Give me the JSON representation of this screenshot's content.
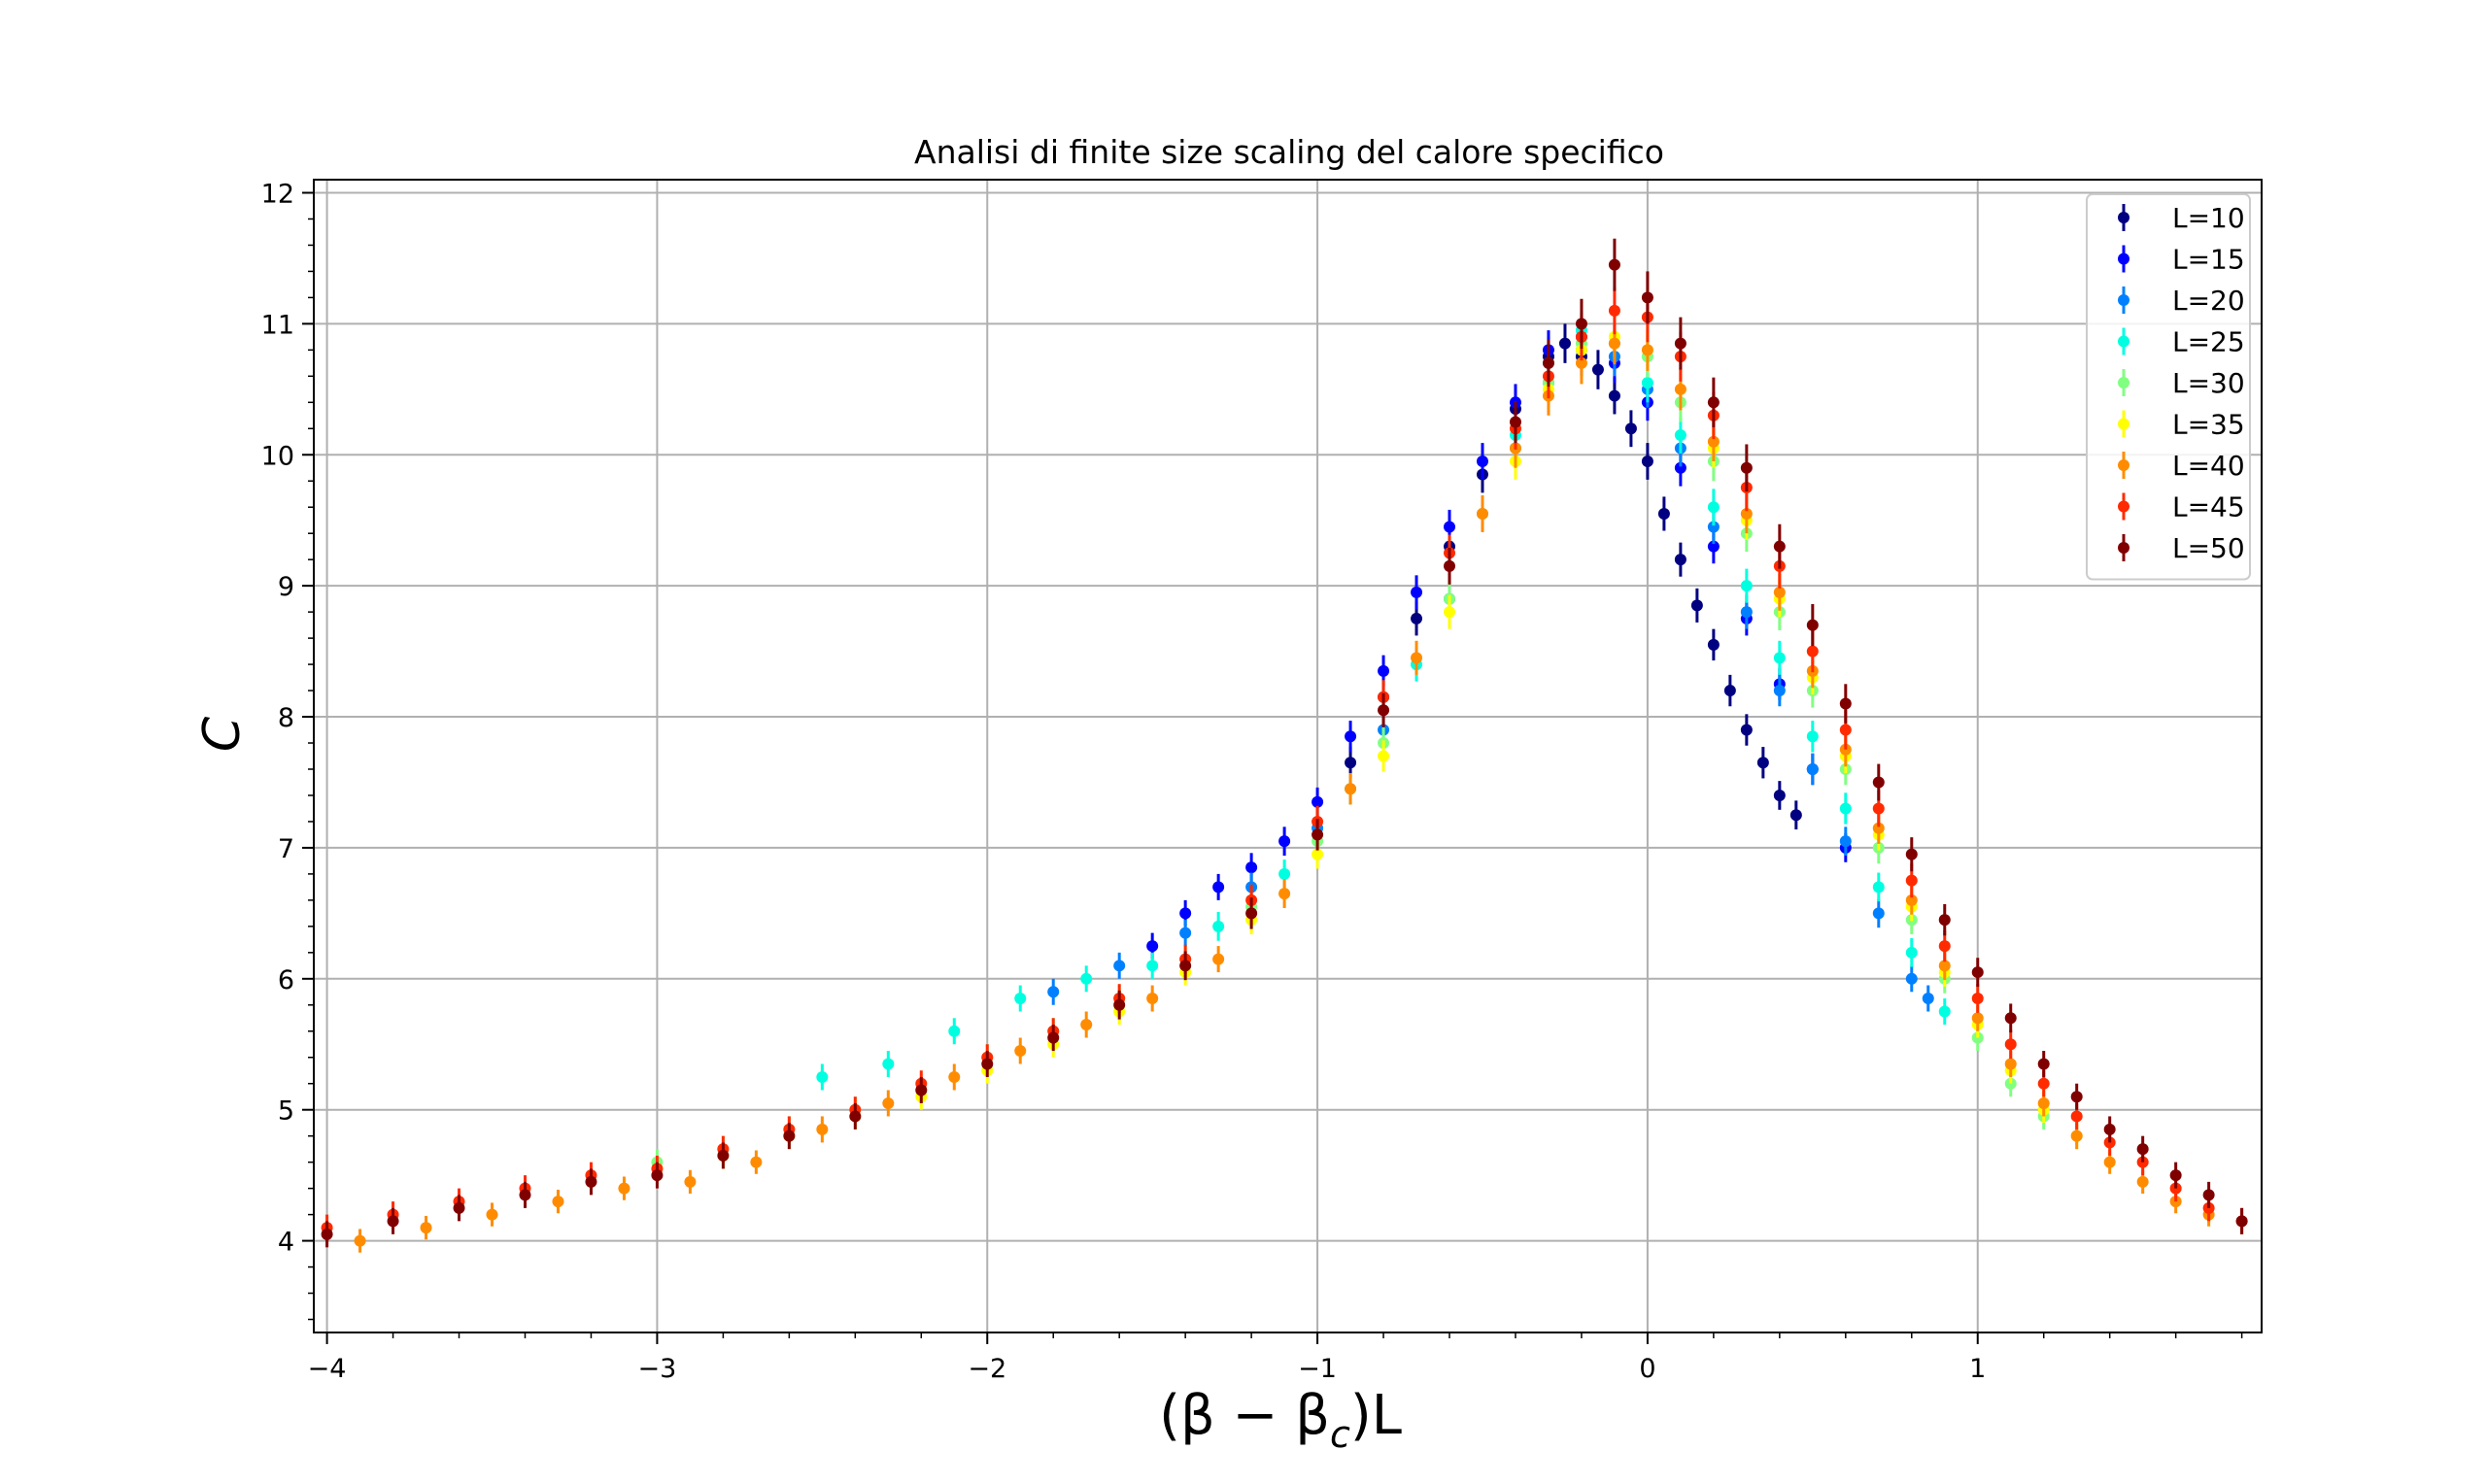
{
  "chart_data": {
    "type": "scatter",
    "title": "Analisi di finite size scaling del calore specifico",
    "xlabel": "(β − β",
    "xlabel_sub": "c",
    "xlabel_suffix": ")L",
    "ylabel": "C",
    "xlim": [
      -4.04,
      1.86
    ],
    "ylim": [
      3.3,
      12.1
    ],
    "xticks": [
      -4,
      -3,
      -2,
      -1,
      0,
      1
    ],
    "xtick_labels": [
      "−4",
      "−3",
      "−2",
      "−1",
      "0",
      "1"
    ],
    "yticks": [
      4,
      5,
      6,
      7,
      8,
      9,
      10,
      11,
      12
    ],
    "ytick_labels": [
      "4",
      "5",
      "6",
      "7",
      "8",
      "9",
      "10",
      "11",
      "12"
    ],
    "grid": true,
    "legend_position": "top-right",
    "error_bars": true,
    "series": [
      {
        "name": "L=10",
        "color": "#000080",
        "x": [
          -0.9,
          -0.8,
          -0.7,
          -0.6,
          -0.5,
          -0.4,
          -0.3,
          -0.25,
          -0.2,
          -0.15,
          -0.1,
          -0.05,
          0.0,
          0.05,
          0.1,
          0.15,
          0.2,
          0.25,
          0.3,
          0.35,
          0.4,
          0.45
        ],
        "y": [
          7.65,
          8.15,
          8.75,
          9.3,
          9.85,
          10.35,
          10.75,
          10.85,
          10.75,
          10.65,
          10.45,
          10.2,
          9.95,
          9.55,
          9.2,
          8.85,
          8.55,
          8.2,
          7.9,
          7.65,
          7.4,
          7.25
        ],
        "err": [
          0.12,
          0.12,
          0.13,
          0.13,
          0.14,
          0.14,
          0.15,
          0.15,
          0.15,
          0.15,
          0.14,
          0.14,
          0.14,
          0.13,
          0.13,
          0.13,
          0.12,
          0.12,
          0.12,
          0.12,
          0.11,
          0.11
        ]
      },
      {
        "name": "L=15",
        "color": "#0000ff",
        "x": [
          -1.5,
          -1.4,
          -1.3,
          -1.2,
          -1.1,
          -1.0,
          -0.9,
          -0.8,
          -0.7,
          -0.6,
          -0.5,
          -0.4,
          -0.3,
          -0.2,
          -0.1,
          0.0,
          0.1,
          0.2,
          0.3,
          0.4,
          0.5,
          0.6
        ],
        "y": [
          6.25,
          6.5,
          6.7,
          6.85,
          7.05,
          7.35,
          7.85,
          8.35,
          8.95,
          9.45,
          9.95,
          10.4,
          10.8,
          10.9,
          10.7,
          10.4,
          9.9,
          9.3,
          8.75,
          8.25,
          7.6,
          7.0
        ],
        "err": [
          0.1,
          0.1,
          0.1,
          0.11,
          0.11,
          0.11,
          0.12,
          0.12,
          0.13,
          0.13,
          0.14,
          0.14,
          0.15,
          0.15,
          0.15,
          0.14,
          0.14,
          0.13,
          0.13,
          0.12,
          0.12,
          0.11
        ]
      },
      {
        "name": "L=20",
        "color": "#0080ff",
        "x": [
          -1.8,
          -1.6,
          -1.4,
          -1.2,
          -1.0,
          -0.8,
          -0.6,
          -0.4,
          -0.3,
          -0.2,
          -0.1,
          0.0,
          0.1,
          0.2,
          0.3,
          0.4,
          0.5,
          0.6,
          0.7,
          0.8,
          0.85
        ],
        "y": [
          5.9,
          6.1,
          6.35,
          6.7,
          7.15,
          7.9,
          8.9,
          10.05,
          10.55,
          10.8,
          10.75,
          10.5,
          10.05,
          9.45,
          8.8,
          8.2,
          7.6,
          7.05,
          6.5,
          6.0,
          5.85
        ],
        "err": [
          0.1,
          0.1,
          0.1,
          0.11,
          0.11,
          0.12,
          0.13,
          0.14,
          0.15,
          0.15,
          0.15,
          0.14,
          0.14,
          0.13,
          0.13,
          0.12,
          0.12,
          0.11,
          0.11,
          0.1,
          0.1
        ]
      },
      {
        "name": "L=25",
        "color": "#00ffe0",
        "x": [
          -2.5,
          -2.3,
          -2.1,
          -1.9,
          -1.7,
          -1.5,
          -1.3,
          -1.1,
          -0.9,
          -0.7,
          -0.5,
          -0.4,
          -0.3,
          -0.2,
          -0.1,
          0.0,
          0.1,
          0.2,
          0.3,
          0.4,
          0.5,
          0.6,
          0.7,
          0.8,
          0.9
        ],
        "y": [
          5.25,
          5.35,
          5.6,
          5.85,
          6.0,
          6.1,
          6.4,
          6.8,
          7.45,
          8.4,
          9.55,
          10.15,
          10.7,
          10.95,
          10.85,
          10.55,
          10.15,
          9.6,
          9.0,
          8.45,
          7.85,
          7.3,
          6.7,
          6.2,
          5.75
        ],
        "err": [
          0.1,
          0.1,
          0.1,
          0.1,
          0.1,
          0.1,
          0.11,
          0.11,
          0.12,
          0.13,
          0.14,
          0.14,
          0.15,
          0.15,
          0.15,
          0.15,
          0.14,
          0.14,
          0.13,
          0.13,
          0.12,
          0.12,
          0.11,
          0.11,
          0.1
        ]
      },
      {
        "name": "L=30",
        "color": "#80ff80",
        "x": [
          -3.0,
          -2.8,
          -2.6,
          -2.4,
          -2.2,
          -2.0,
          -1.8,
          -1.6,
          -1.4,
          -1.2,
          -1.0,
          -0.8,
          -0.6,
          -0.4,
          -0.3,
          -0.2,
          -0.1,
          0.0,
          0.1,
          0.2,
          0.3,
          0.4,
          0.5,
          0.6,
          0.7,
          0.8,
          0.9,
          1.0,
          1.1,
          1.2
        ],
        "y": [
          4.6,
          4.7,
          4.85,
          5.0,
          5.15,
          5.4,
          5.6,
          5.85,
          6.15,
          6.55,
          7.05,
          7.8,
          8.9,
          10.05,
          10.55,
          10.85,
          10.9,
          10.75,
          10.4,
          9.95,
          9.4,
          8.8,
          8.2,
          7.6,
          7.0,
          6.45,
          6.0,
          5.55,
          5.2,
          4.95
        ],
        "err": [
          0.1,
          0.1,
          0.1,
          0.1,
          0.1,
          0.1,
          0.1,
          0.1,
          0.1,
          0.11,
          0.11,
          0.12,
          0.13,
          0.14,
          0.15,
          0.15,
          0.16,
          0.16,
          0.15,
          0.15,
          0.14,
          0.14,
          0.13,
          0.12,
          0.12,
          0.11,
          0.11,
          0.1,
          0.1,
          0.1
        ]
      },
      {
        "name": "L=35",
        "color": "#ffff00",
        "x": [
          -3.0,
          -2.8,
          -2.6,
          -2.4,
          -2.2,
          -2.0,
          -1.8,
          -1.6,
          -1.4,
          -1.2,
          -1.0,
          -0.8,
          -0.6,
          -0.4,
          -0.3,
          -0.2,
          -0.1,
          0.0,
          0.1,
          0.2,
          0.3,
          0.4,
          0.5,
          0.6,
          0.7,
          0.8,
          0.9,
          1.0,
          1.1,
          1.2,
          1.3
        ],
        "y": [
          4.55,
          4.65,
          4.8,
          4.95,
          5.1,
          5.3,
          5.5,
          5.75,
          6.05,
          6.45,
          6.95,
          7.7,
          8.8,
          9.95,
          10.5,
          10.8,
          10.9,
          10.8,
          10.5,
          10.05,
          9.5,
          8.9,
          8.3,
          7.7,
          7.1,
          6.55,
          6.05,
          5.65,
          5.3,
          5.0,
          4.8
        ],
        "err": [
          0.1,
          0.1,
          0.1,
          0.1,
          0.1,
          0.1,
          0.1,
          0.1,
          0.1,
          0.11,
          0.11,
          0.12,
          0.13,
          0.14,
          0.15,
          0.15,
          0.16,
          0.16,
          0.16,
          0.15,
          0.15,
          0.14,
          0.13,
          0.13,
          0.12,
          0.11,
          0.11,
          0.1,
          0.1,
          0.1,
          0.1
        ]
      },
      {
        "name": "L=40",
        "color": "#ff8c00",
        "x": [
          -3.9,
          -3.7,
          -3.5,
          -3.3,
          -3.1,
          -2.9,
          -2.7,
          -2.5,
          -2.3,
          -2.1,
          -1.9,
          -1.7,
          -1.5,
          -1.3,
          -1.1,
          -0.9,
          -0.7,
          -0.5,
          -0.4,
          -0.3,
          -0.2,
          -0.1,
          0.0,
          0.1,
          0.2,
          0.3,
          0.4,
          0.5,
          0.6,
          0.7,
          0.8,
          0.9,
          1.0,
          1.1,
          1.2,
          1.3,
          1.4,
          1.5,
          1.6,
          1.7
        ],
        "y": [
          4.0,
          4.1,
          4.2,
          4.3,
          4.4,
          4.45,
          4.6,
          4.85,
          5.05,
          5.25,
          5.45,
          5.65,
          5.85,
          6.15,
          6.65,
          7.45,
          8.45,
          9.55,
          10.05,
          10.45,
          10.7,
          10.85,
          10.8,
          10.5,
          10.1,
          9.55,
          8.95,
          8.35,
          7.75,
          7.15,
          6.6,
          6.1,
          5.7,
          5.35,
          5.05,
          4.8,
          4.6,
          4.45,
          4.3,
          4.2
        ],
        "err": [
          0.09,
          0.09,
          0.09,
          0.09,
          0.09,
          0.09,
          0.09,
          0.1,
          0.1,
          0.1,
          0.1,
          0.1,
          0.1,
          0.1,
          0.11,
          0.12,
          0.13,
          0.14,
          0.15,
          0.15,
          0.16,
          0.16,
          0.16,
          0.16,
          0.15,
          0.15,
          0.14,
          0.13,
          0.13,
          0.12,
          0.11,
          0.11,
          0.1,
          0.1,
          0.1,
          0.1,
          0.09,
          0.09,
          0.09,
          0.09
        ]
      },
      {
        "name": "L=45",
        "color": "#ff2a00",
        "x": [
          -4.0,
          -3.8,
          -3.6,
          -3.4,
          -3.2,
          -3.0,
          -2.8,
          -2.6,
          -2.4,
          -2.2,
          -2.0,
          -1.8,
          -1.6,
          -1.4,
          -1.2,
          -1.0,
          -0.8,
          -0.6,
          -0.4,
          -0.3,
          -0.2,
          -0.1,
          0.0,
          0.1,
          0.2,
          0.3,
          0.4,
          0.5,
          0.6,
          0.7,
          0.8,
          0.9,
          1.0,
          1.1,
          1.2,
          1.3,
          1.4,
          1.5,
          1.6,
          1.7,
          1.8
        ],
        "y": [
          4.1,
          4.2,
          4.3,
          4.4,
          4.5,
          4.55,
          4.7,
          4.85,
          5.0,
          5.2,
          5.4,
          5.6,
          5.85,
          6.15,
          6.6,
          7.2,
          8.15,
          9.25,
          10.2,
          10.6,
          10.9,
          11.1,
          11.05,
          10.75,
          10.3,
          9.75,
          9.15,
          8.5,
          7.9,
          7.3,
          6.75,
          6.25,
          5.85,
          5.5,
          5.2,
          4.95,
          4.75,
          4.6,
          4.4,
          4.25,
          4.15
        ],
        "err": [
          0.1,
          0.1,
          0.1,
          0.1,
          0.1,
          0.1,
          0.1,
          0.1,
          0.1,
          0.1,
          0.1,
          0.1,
          0.11,
          0.11,
          0.12,
          0.12,
          0.13,
          0.14,
          0.16,
          0.17,
          0.18,
          0.18,
          0.19,
          0.19,
          0.18,
          0.18,
          0.17,
          0.16,
          0.15,
          0.14,
          0.13,
          0.12,
          0.11,
          0.11,
          0.1,
          0.1,
          0.1,
          0.1,
          0.1,
          0.1,
          0.1
        ]
      },
      {
        "name": "L=50",
        "color": "#800000",
        "x": [
          -4.0,
          -3.8,
          -3.6,
          -3.4,
          -3.2,
          -3.0,
          -2.8,
          -2.6,
          -2.4,
          -2.2,
          -2.0,
          -1.8,
          -1.6,
          -1.4,
          -1.2,
          -1.0,
          -0.8,
          -0.6,
          -0.4,
          -0.3,
          -0.2,
          -0.1,
          0.0,
          0.1,
          0.2,
          0.3,
          0.4,
          0.5,
          0.6,
          0.7,
          0.8,
          0.9,
          1.0,
          1.1,
          1.2,
          1.3,
          1.4,
          1.5,
          1.6,
          1.7,
          1.8
        ],
        "y": [
          4.05,
          4.15,
          4.25,
          4.35,
          4.45,
          4.5,
          4.65,
          4.8,
          4.95,
          5.15,
          5.35,
          5.55,
          5.8,
          6.1,
          6.5,
          7.1,
          8.05,
          9.15,
          10.25,
          10.7,
          11.0,
          11.45,
          11.2,
          10.85,
          10.4,
          9.9,
          9.3,
          8.7,
          8.1,
          7.5,
          6.95,
          6.45,
          6.05,
          5.7,
          5.35,
          5.1,
          4.85,
          4.7,
          4.5,
          4.35,
          4.15
        ],
        "err": [
          0.1,
          0.1,
          0.1,
          0.1,
          0.1,
          0.1,
          0.1,
          0.1,
          0.1,
          0.1,
          0.1,
          0.1,
          0.11,
          0.11,
          0.12,
          0.12,
          0.13,
          0.14,
          0.16,
          0.18,
          0.19,
          0.2,
          0.2,
          0.2,
          0.19,
          0.18,
          0.17,
          0.16,
          0.15,
          0.14,
          0.13,
          0.12,
          0.11,
          0.11,
          0.1,
          0.1,
          0.1,
          0.1,
          0.1,
          0.1,
          0.1
        ]
      }
    ]
  }
}
